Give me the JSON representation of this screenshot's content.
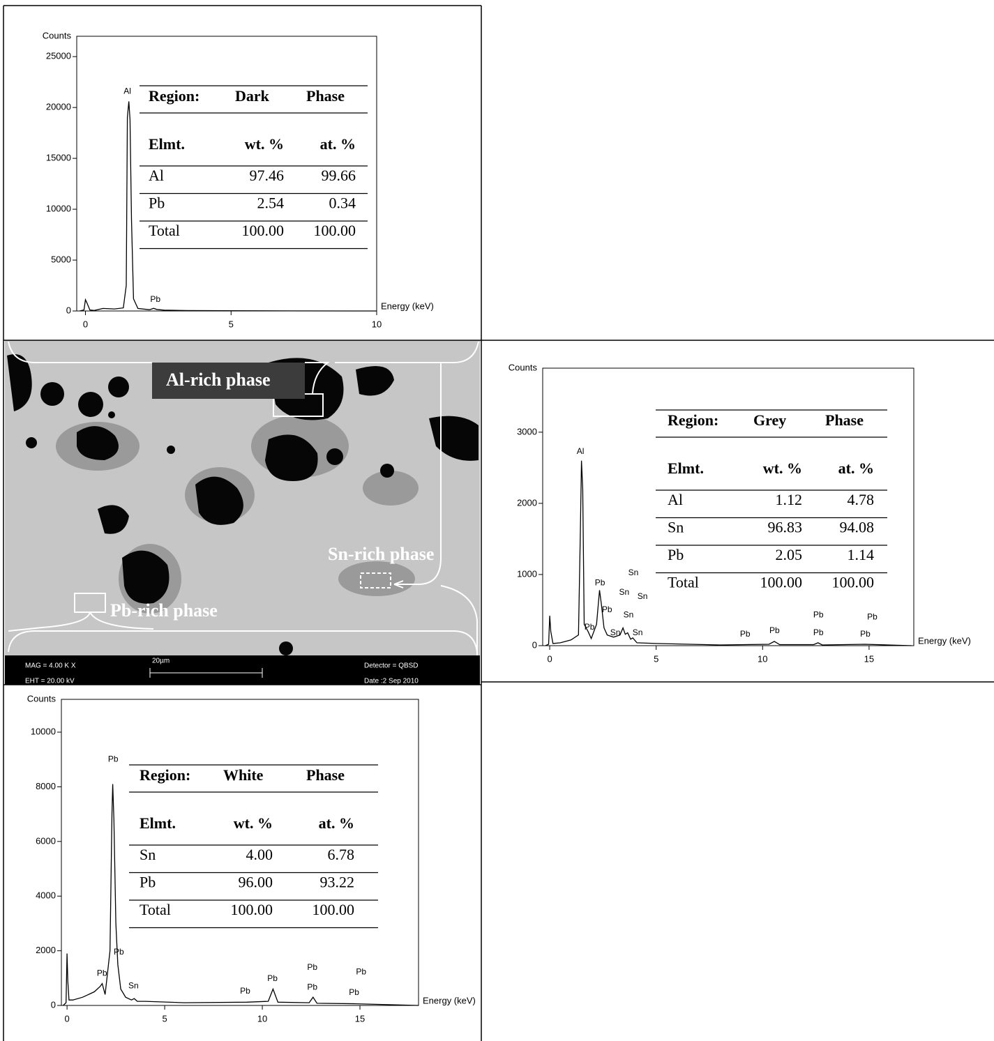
{
  "chart_data": [
    {
      "type": "line",
      "y_label": "Counts",
      "x_label": "Energy (keV)",
      "xlim": [
        -0.3,
        10
      ],
      "xticks": [
        0,
        5,
        10
      ],
      "ylim": [
        0,
        27000
      ],
      "yticks": [
        0,
        5000,
        10000,
        15000,
        20000,
        25000
      ],
      "color": "#000000",
      "x": [
        -0.2,
        -0.05,
        0,
        0.05,
        0.15,
        0.3,
        0.6,
        1.0,
        1.3,
        1.4,
        1.44,
        1.49,
        1.53,
        1.58,
        1.65,
        1.8,
        2.2,
        2.34,
        2.45,
        2.7,
        3.5,
        5,
        7,
        10
      ],
      "values": [
        0,
        100,
        1100,
        800,
        100,
        50,
        250,
        200,
        300,
        2500,
        19000,
        20600,
        18800,
        9000,
        1200,
        250,
        120,
        260,
        150,
        80,
        40,
        20,
        10,
        0
      ],
      "annotations": [
        {
          "text": "Al",
          "x": 1.44,
          "y": 21570
        },
        {
          "text": "Pb",
          "x": 2.4,
          "y": 1100
        }
      ],
      "table": {
        "header": [
          "Region:",
          "Dark",
          "Phase"
        ],
        "columns": [
          "Elmt.",
          "wt. %",
          "at. %"
        ],
        "rows": [
          [
            "Al",
            "97.46",
            "99.66"
          ],
          [
            "Pb",
            "2.54",
            "0.34"
          ],
          [
            "Total",
            "100.00",
            "100.00"
          ]
        ]
      }
    },
    {
      "type": "line",
      "y_label": "Counts",
      "x_label": "Energy (keV)",
      "xlim": [
        -0.33,
        17.1
      ],
      "xticks": [
        0,
        5,
        10,
        15
      ],
      "ylim": [
        0,
        3900
      ],
      "yticks": [
        0,
        1000,
        2000,
        3000
      ],
      "color": "#000000",
      "x": [
        -0.2,
        -0.05,
        0,
        0.05,
        0.15,
        0.5,
        1.0,
        1.35,
        1.44,
        1.49,
        1.55,
        1.62,
        1.8,
        1.95,
        2.2,
        2.34,
        2.42,
        2.55,
        2.7,
        3.0,
        3.3,
        3.44,
        3.55,
        3.66,
        3.8,
        3.9,
        4.1,
        5,
        8,
        10.3,
        10.55,
        10.8,
        12.4,
        12.6,
        12.8,
        14.8,
        17
      ],
      "values": [
        0,
        20,
        420,
        200,
        30,
        40,
        80,
        150,
        1600,
        2600,
        2200,
        300,
        200,
        100,
        300,
        780,
        600,
        250,
        150,
        120,
        150,
        250,
        160,
        180,
        90,
        110,
        40,
        30,
        10,
        20,
        60,
        15,
        15,
        40,
        10,
        20,
        0
      ],
      "annotations": [
        {
          "text": "Al",
          "x": 1.44,
          "y": 2725
        },
        {
          "text": "Pb",
          "x": 2.36,
          "y": 880
        },
        {
          "text": "Sn",
          "x": 3.93,
          "y": 1020
        },
        {
          "text": "Sn",
          "x": 3.5,
          "y": 745
        },
        {
          "text": "Sn",
          "x": 4.36,
          "y": 686
        },
        {
          "text": "Pb",
          "x": 2.69,
          "y": 500
        },
        {
          "text": "Sn",
          "x": 3.7,
          "y": 430
        },
        {
          "text": "Pb",
          "x": 1.87,
          "y": 255
        },
        {
          "text": "Sn",
          "x": 3.08,
          "y": 176
        },
        {
          "text": "Sn",
          "x": 4.13,
          "y": 176
        },
        {
          "text": "Pb",
          "x": 9.18,
          "y": 157
        },
        {
          "text": "Pb",
          "x": 10.56,
          "y": 206
        },
        {
          "text": "Pb",
          "x": 12.62,
          "y": 430
        },
        {
          "text": "Pb",
          "x": 12.62,
          "y": 176
        },
        {
          "text": "Pb",
          "x": 15.15,
          "y": 400
        },
        {
          "text": "Pb",
          "x": 14.82,
          "y": 157
        }
      ],
      "table": {
        "header": [
          "Region:",
          "Grey",
          "Phase"
        ],
        "columns": [
          "Elmt.",
          "wt. %",
          "at. %"
        ],
        "rows": [
          [
            "Al",
            "1.12",
            "4.78"
          ],
          [
            "Sn",
            "96.83",
            "94.08"
          ],
          [
            "Pb",
            "2.05",
            "1.14"
          ],
          [
            "Total",
            "100.00",
            "100.00"
          ]
        ]
      }
    },
    {
      "type": "line",
      "y_label": "Counts",
      "x_label": "Energy (keV)",
      "xlim": [
        -0.29,
        18
      ],
      "xticks": [
        0,
        5,
        10,
        15
      ],
      "ylim": [
        0,
        11200
      ],
      "yticks": [
        0,
        2000,
        4000,
        6000,
        8000,
        10000
      ],
      "color": "#000000",
      "x": [
        -0.2,
        -0.05,
        0,
        0.04,
        0.1,
        0.3,
        0.8,
        1.4,
        1.7,
        1.8,
        1.95,
        2.2,
        2.3,
        2.34,
        2.4,
        2.5,
        2.6,
        2.75,
        3.0,
        3.3,
        3.44,
        3.6,
        4.0,
        6,
        9.2,
        10.3,
        10.55,
        10.8,
        12.4,
        12.6,
        12.8,
        14.8,
        18
      ],
      "values": [
        0,
        100,
        1900,
        900,
        200,
        200,
        300,
        500,
        700,
        800,
        400,
        2000,
        7000,
        8100,
        6800,
        3000,
        1500,
        600,
        300,
        200,
        250,
        150,
        150,
        100,
        120,
        150,
        600,
        120,
        100,
        300,
        80,
        60,
        0
      ],
      "annotations": [
        {
          "text": "Pb",
          "x": 2.36,
          "y": 9000
        },
        {
          "text": "Pb",
          "x": 2.65,
          "y": 1940
        },
        {
          "text": "Pb",
          "x": 1.79,
          "y": 1170
        },
        {
          "text": "Sn",
          "x": 3.4,
          "y": 710
        },
        {
          "text": "Pb",
          "x": 9.12,
          "y": 510
        },
        {
          "text": "Pb",
          "x": 10.52,
          "y": 970
        },
        {
          "text": "Pb",
          "x": 12.56,
          "y": 1380
        },
        {
          "text": "Pb",
          "x": 12.56,
          "y": 660
        },
        {
          "text": "Pb",
          "x": 15.06,
          "y": 1220
        },
        {
          "text": "Pb",
          "x": 14.7,
          "y": 460
        }
      ],
      "table": {
        "header": [
          "Region:",
          "White",
          "Phase"
        ],
        "columns": [
          "Elmt.",
          "wt. %",
          "at. %"
        ],
        "rows": [
          [
            "Sn",
            "4.00",
            "6.78"
          ],
          [
            "Pb",
            "96.00",
            "93.22"
          ],
          [
            "Total",
            "100.00",
            "100.00"
          ]
        ]
      }
    }
  ],
  "micrograph": {
    "phase_labels": [
      "Al-rich phase",
      "Sn-rich phase",
      "Pb-rich phase"
    ],
    "info": [
      "MAG =  4.00 K X",
      "EHT = 20.00 kV",
      "20µm",
      "Detector = QBSD",
      "Date :2 Sep 2010"
    ]
  }
}
